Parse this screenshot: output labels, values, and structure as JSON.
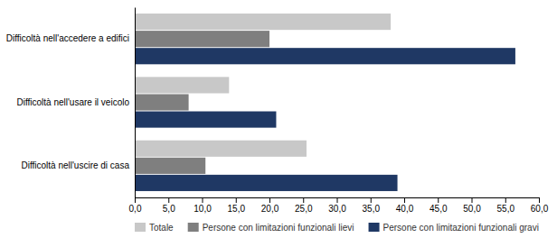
{
  "chart_data": {
    "type": "bar",
    "orientation": "horizontal",
    "categories": [
      "Difficoltà nell'accedere a edifici",
      "Difficoltà nell'usare il veicolo",
      "Difficoltà nell'uscire di casa"
    ],
    "series": [
      {
        "name": "Totale",
        "color": "#c8c8c8",
        "values": [
          38.0,
          14.0,
          25.5
        ]
      },
      {
        "name": "Persone con limitazioni funzionali lievi",
        "color": "#7f7f7f",
        "values": [
          20.0,
          8.0,
          10.5
        ]
      },
      {
        "name": "Persone con limitazioni funzionali gravi",
        "color": "#1f3864",
        "values": [
          56.5,
          21.0,
          39.0
        ]
      }
    ],
    "xlim": [
      0,
      60
    ],
    "xticks": [
      {
        "value": 0.0,
        "label": "0,0"
      },
      {
        "value": 5.0,
        "label": "5,0"
      },
      {
        "value": 10.0,
        "label": "10,0"
      },
      {
        "value": 15.0,
        "label": "15,0"
      },
      {
        "value": 20.0,
        "label": "20,0"
      },
      {
        "value": 25.0,
        "label": "25,0"
      },
      {
        "value": 30.0,
        "label": "30,0"
      },
      {
        "value": 35.0,
        "label": "35,0"
      },
      {
        "value": 40.0,
        "label": "40,0"
      },
      {
        "value": 45.0,
        "label": "45,0"
      },
      {
        "value": 50.0,
        "label": "50,0"
      },
      {
        "value": 55.0,
        "label": "55,0"
      },
      {
        "value": 60.0,
        "label": "60,0"
      }
    ],
    "grid": false,
    "legend": "bottom"
  }
}
